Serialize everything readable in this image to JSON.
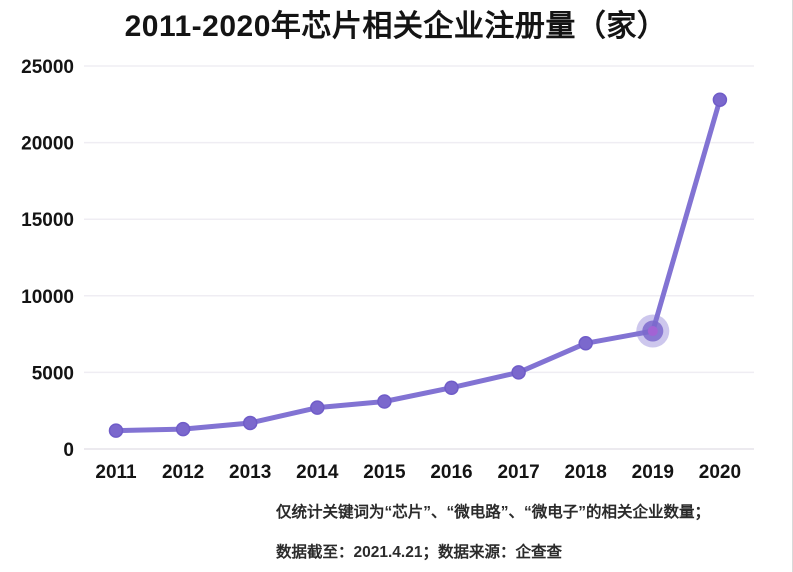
{
  "title": "2011-2020年芯片相关企业注册量（家）",
  "colors": {
    "line": "#8273d3",
    "marker_fill": "#7b68cd",
    "marker_edge": "#6f5cc8",
    "highlight_halo": "#8273d3",
    "highlight_core": "#a263d4",
    "grid": "#efedf3",
    "zero_axis": "#e5e3ea",
    "text": "#141414",
    "footnote_text": "#2b2b2b"
  },
  "chart_data": {
    "type": "line",
    "title": "2011-2020年芯片相关企业注册量（家）",
    "categories": [
      "2011",
      "2012",
      "2013",
      "2014",
      "2015",
      "2016",
      "2017",
      "2018",
      "2019",
      "2020"
    ],
    "values": [
      1200,
      1300,
      1700,
      2700,
      3100,
      4000,
      5000,
      6900,
      7700,
      22800
    ],
    "xlabel": "",
    "ylabel": "",
    "ylim": [
      0,
      25000
    ],
    "yticks": [
      0,
      5000,
      10000,
      15000,
      20000,
      25000
    ],
    "grid": "horizontal-only",
    "legend": "none",
    "highlight_index": 8,
    "highlight_category": "2019"
  },
  "footnotes": {
    "line1": "仅统计关键词为“芯片”、“微电路”、“微电子”的相关企业数量；",
    "line2": "数据截至：2021.4.21；数据来源：企查查"
  }
}
